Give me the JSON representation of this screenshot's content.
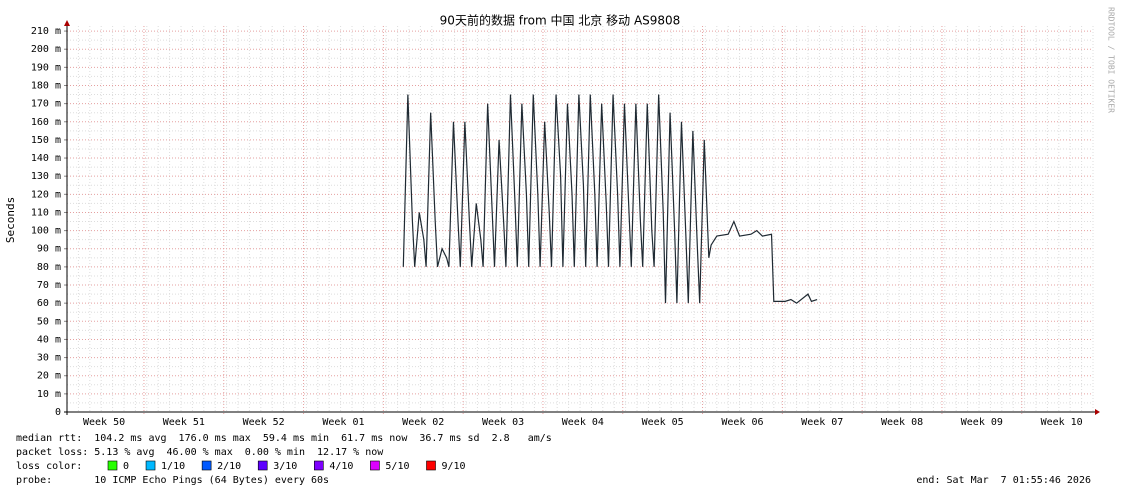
{
  "chart_data": {
    "type": "line",
    "title": "90天前的数据 from 中国 北京 移动 AS9808",
    "y_label": "Seconds",
    "side_text": "RRDTOOL / TOBI OETIKER",
    "xlim": [
      0,
      90
    ],
    "ylim": [
      0,
      215
    ],
    "xticks": [
      {
        "value": 3.25,
        "label": "Week 50"
      },
      {
        "value": 10.25,
        "label": "Week 51"
      },
      {
        "value": 17.25,
        "label": "Week 52"
      },
      {
        "value": 24.25,
        "label": "Week 01"
      },
      {
        "value": 31.25,
        "label": "Week 02"
      },
      {
        "value": 38.25,
        "label": "Week 03"
      },
      {
        "value": 45.25,
        "label": "Week 04"
      },
      {
        "value": 52.25,
        "label": "Week 05"
      },
      {
        "value": 59.25,
        "label": "Week 06"
      },
      {
        "value": 66.25,
        "label": "Week 07"
      },
      {
        "value": 73.25,
        "label": "Week 08"
      },
      {
        "value": 80.25,
        "label": "Week 09"
      },
      {
        "value": 87.25,
        "label": "Week 10"
      }
    ],
    "yticks": [
      0,
      {
        "value": 10,
        "label": "10 m"
      },
      {
        "value": 20,
        "label": "20 m"
      },
      {
        "value": 30,
        "label": "30 m"
      },
      {
        "value": 40,
        "label": "40 m"
      },
      {
        "value": 50,
        "label": "50 m"
      },
      {
        "value": 60,
        "label": "60 m"
      },
      {
        "value": 70,
        "label": "70 m"
      },
      {
        "value": 80,
        "label": "80 m"
      },
      {
        "value": 90,
        "label": "90 m"
      },
      {
        "value": 100,
        "label": "100 m"
      },
      {
        "value": 110,
        "label": "110 m"
      },
      {
        "value": 120,
        "label": "120 m"
      },
      {
        "value": 130,
        "label": "130 m"
      },
      {
        "value": 140,
        "label": "140 m"
      },
      {
        "value": 150,
        "label": "150 m"
      },
      {
        "value": 160,
        "label": "160 m"
      },
      {
        "value": 170,
        "label": "170 m"
      },
      {
        "value": 180,
        "label": "180 m"
      },
      {
        "value": 190,
        "label": "190 m"
      },
      {
        "value": 200,
        "label": "200 m"
      },
      {
        "value": 210,
        "label": "210 m"
      }
    ],
    "grid": true,
    "series": [
      {
        "color": "#1f2a33",
        "x": [
          29.5,
          29.9,
          30.3,
          30.5,
          30.9,
          31.3,
          31.5,
          31.9,
          32.3,
          32.5,
          32.9,
          33.3,
          33.5,
          33.9,
          34.3,
          34.5,
          34.9,
          35.3,
          35.5,
          35.9,
          36.3,
          36.5,
          36.9,
          37.3,
          37.5,
          37.9,
          38.3,
          38.5,
          38.9,
          39.3,
          39.5,
          39.9,
          40.3,
          40.5,
          40.9,
          41.3,
          41.5,
          41.9,
          42.3,
          42.5,
          42.9,
          43.3,
          43.5,
          43.9,
          44.3,
          44.5,
          44.9,
          45.3,
          45.5,
          45.9,
          46.3,
          46.5,
          46.9,
          47.3,
          47.5,
          47.9,
          48.3,
          48.5,
          48.9,
          49.3,
          49.5,
          49.9,
          50.3,
          50.5,
          50.9,
          51.3,
          51.5,
          51.9,
          52.3,
          52.5,
          52.9,
          53.3,
          53.5,
          53.9,
          54.3,
          54.5,
          54.9,
          55.3,
          55.5,
          55.9,
          56.3,
          56.5,
          57,
          58,
          58.5,
          59,
          60,
          60.5,
          61,
          61.8,
          62,
          63,
          63.5,
          64,
          65,
          65.3,
          65.8
        ],
        "values": [
          80,
          175,
          105,
          80,
          110,
          95,
          80,
          165,
          105,
          80,
          90,
          85,
          80,
          160,
          105,
          80,
          160,
          105,
          80,
          115,
          95,
          80,
          170,
          110,
          80,
          150,
          105,
          80,
          175,
          115,
          80,
          170,
          120,
          80,
          175,
          120,
          80,
          160,
          110,
          80,
          175,
          130,
          80,
          170,
          120,
          80,
          175,
          125,
          80,
          175,
          120,
          80,
          170,
          115,
          80,
          175,
          120,
          80,
          170,
          110,
          80,
          170,
          105,
          80,
          170,
          100,
          80,
          175,
          110,
          60,
          165,
          100,
          60,
          160,
          95,
          60,
          155,
          90,
          60,
          150,
          85,
          92,
          97,
          98,
          105,
          97,
          98,
          100,
          97,
          98,
          61,
          61,
          62,
          60,
          65,
          61,
          62
        ]
      }
    ],
    "stats": [
      "median rtt:  104.2 ms avg  176.0 ms max  59.4 ms min  61.7 ms now  36.7 ms sd  2.8   am/s",
      "packet loss: 5.13 % avg  46.00 % max  0.00 % min  12.17 % now"
    ],
    "legend_title": "loss color:",
    "legend": [
      {
        "name": "0",
        "color": "#26ff00"
      },
      {
        "name": "1/10",
        "color": "#00b8ff"
      },
      {
        "name": "2/10",
        "color": "#0059ff"
      },
      {
        "name": "3/10",
        "color": "#5e00ff"
      },
      {
        "name": "4/10",
        "color": "#7e00ff"
      },
      {
        "name": "5/10",
        "color": "#dd00ff"
      },
      {
        "name": "9/10",
        "color": "#ff0000"
      }
    ],
    "probe": "probe:       10 ICMP Echo Pings (64 Bytes) every 60s",
    "end": "end: Sat Mar  7 01:55:46 2026"
  }
}
